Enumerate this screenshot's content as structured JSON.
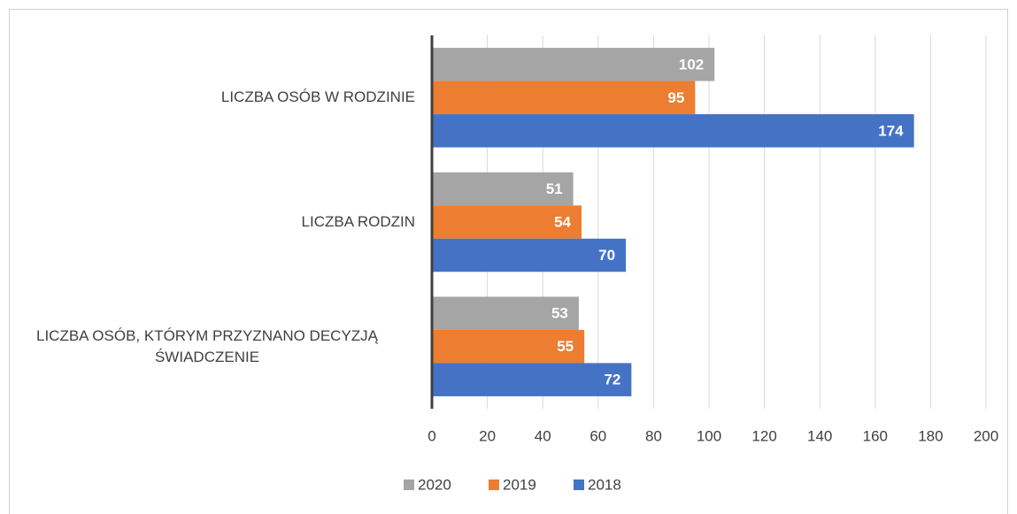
{
  "chart_data": {
    "type": "bar",
    "orientation": "horizontal",
    "categories": [
      "LICZBA OSÓB W RODZINIE",
      "LICZBA RODZIN",
      "LICZBA OSÓB, KTÓRYM PRZYZNANO DECYZJĄ ŚWIADCZENIE"
    ],
    "series": [
      {
        "name": "2020",
        "color": "#a5a5a5",
        "values": [
          102,
          51,
          53
        ]
      },
      {
        "name": "2019",
        "color": "#ed7d31",
        "values": [
          95,
          54,
          55
        ]
      },
      {
        "name": "2018",
        "color": "#4472c4",
        "values": [
          174,
          70,
          72
        ]
      }
    ],
    "xlim": [
      0,
      200
    ],
    "xticks": [
      0,
      20,
      40,
      60,
      80,
      100,
      120,
      140,
      160,
      180,
      200
    ],
    "grid": true,
    "legend": "bottom"
  }
}
